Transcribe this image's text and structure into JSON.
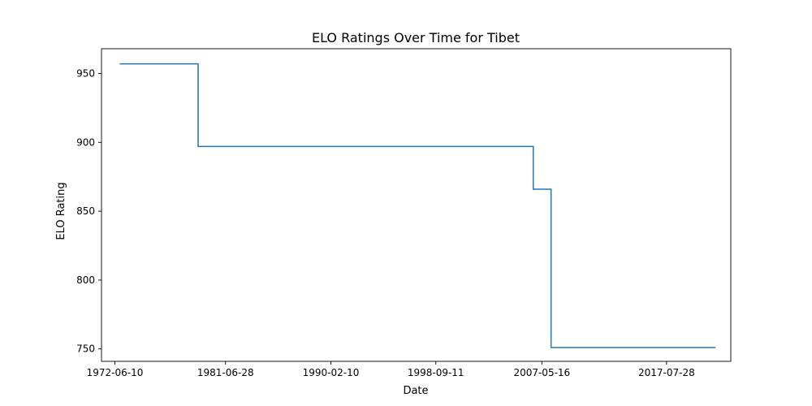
{
  "chart_data": {
    "type": "line",
    "title": "ELO Ratings Over Time for Tibet",
    "xlabel": "Date",
    "ylabel": "ELO Rating",
    "x_tick_labels": [
      "1972-06-10",
      "1981-06-28",
      "1990-02-10",
      "1998-09-11",
      "2007-05-16",
      "2017-07-28"
    ],
    "x_tick_dates": [
      "1972-06-10",
      "1981-06-28",
      "1990-02-10",
      "1998-09-11",
      "2007-05-16",
      "2017-07-28"
    ],
    "y_ticks": [
      750,
      800,
      850,
      900,
      950
    ],
    "xlim": [
      "1971-05-06",
      "2022-10-30"
    ],
    "ylim": [
      741,
      968
    ],
    "grid": false,
    "line_color": "#1f77b4",
    "step": "post",
    "series": [
      {
        "x": [
          "1972-11-01",
          "1979-04-01",
          "2006-09-01",
          "2008-02-15",
          "2021-08-01"
        ],
        "y": [
          957,
          897,
          866,
          751,
          751
        ]
      }
    ]
  }
}
